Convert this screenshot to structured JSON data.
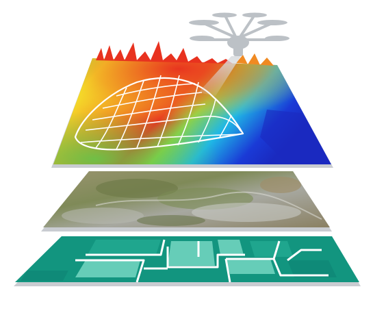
{
  "diagram": {
    "layers": [
      {
        "name": "elevation-model",
        "kind": "heatmap-with-wireframe"
      },
      {
        "name": "imagery",
        "kind": "aerial-photo"
      },
      {
        "name": "land-parcels",
        "kind": "vector-polygons"
      }
    ],
    "sensor": {
      "icon": "drone-icon"
    },
    "colors": {
      "heat_hot": "#e8321f",
      "heat_mid": "#f5e22a",
      "heat_warm": "#62c94a",
      "heat_cool": "#1fb8e6",
      "heat_cold": "#1a3ad6",
      "imagery_ground": "#8e8b6a",
      "parcel_dark": "#0f8a78",
      "parcel_mid": "#1fa68e",
      "parcel_light": "#66cdb8",
      "slab_edge": "#c9ccd1",
      "drone": "#bcc1c6"
    }
  }
}
